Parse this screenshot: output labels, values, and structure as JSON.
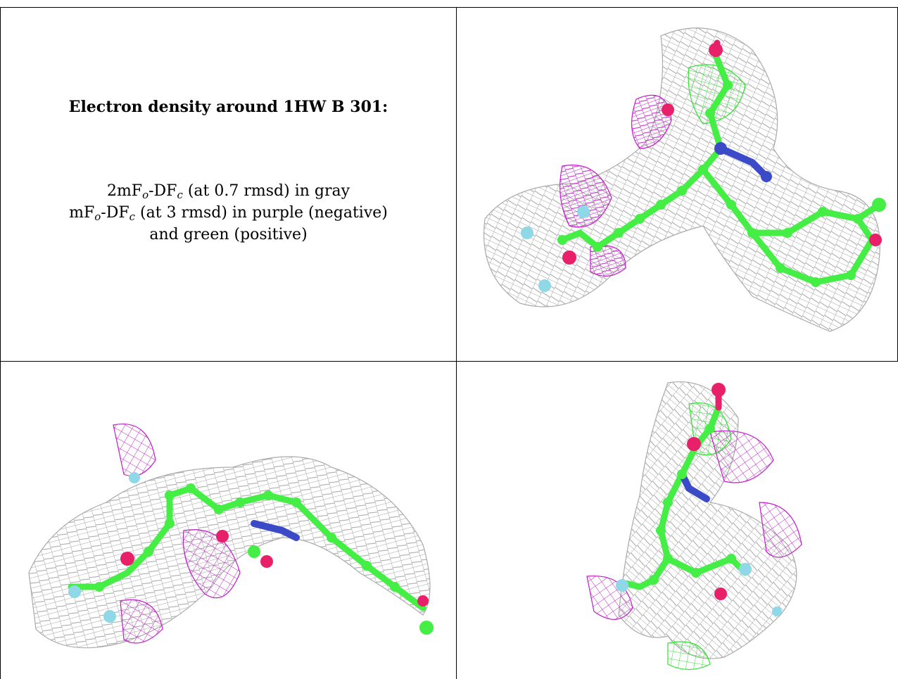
{
  "caption": {
    "title": "Electron density around 1HW B 301:",
    "line1_prefix": "2mF",
    "line1_sub_o": "o",
    "line1_mid": "-DF",
    "line1_sub_c": "c",
    "line1_suffix": " (at 0.7 rmsd) in gray",
    "line2_prefix": "mF",
    "line2_sub_o": "o",
    "line2_mid": "-DF",
    "line2_sub_c": "c",
    "line2_suffix": " (at 3 rmsd) in purple (negative)",
    "line3": "and green (positive)"
  },
  "colors": {
    "mesh_gray": "#9a9a9a",
    "mesh_purple": "#c020c8",
    "mesh_green": "#30e030",
    "carbon": "#44ee44",
    "oxygen": "#e8206a",
    "nitrogen": "#3b4bc8",
    "fluorine": "#8fd8e8"
  },
  "panels": [
    {
      "name": "view-top-right",
      "description_icon": "molecule-density-view"
    },
    {
      "name": "view-bottom-left",
      "description_icon": "molecule-density-view"
    },
    {
      "name": "view-bottom-right",
      "description_icon": "molecule-density-view"
    }
  ]
}
